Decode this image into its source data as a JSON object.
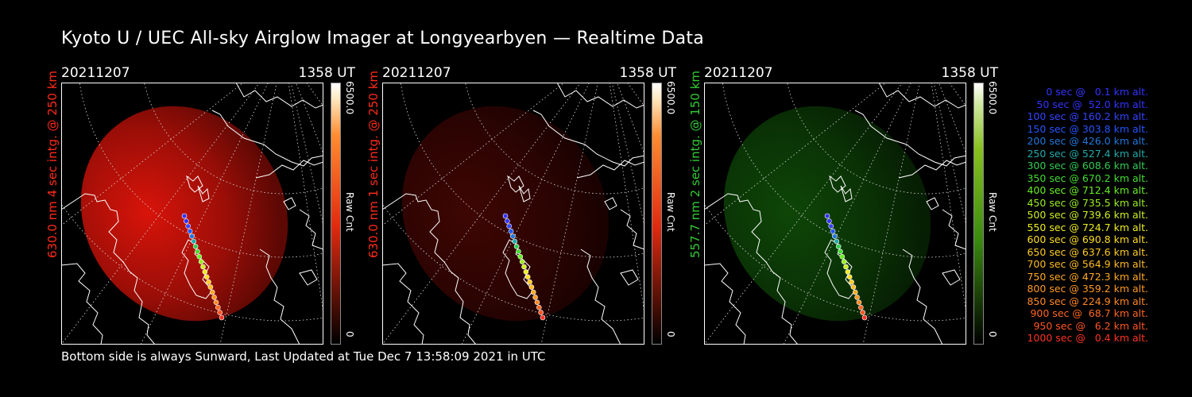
{
  "title": "Kyoto U / UEC All-sky Airglow Imager at Longyearbyen — Realtime Data",
  "footer": "Bottom side is always Sunward, Last Updated at Tue Dec  7 13:58:09 2021 in UTC",
  "panels": [
    {
      "date": "20211207",
      "time": "1358 UT",
      "side_label": "630.0 nm 4 sec intg. @ 250 km",
      "label_color": "#ff2a1a",
      "cbar_max": "6500.0",
      "cbar_unit": "Raw Cnt",
      "cbar_min": "0",
      "colormap": "red",
      "brightness": 0.7
    },
    {
      "date": "20211207",
      "time": "1358 UT",
      "side_label": "630.0 nm 1 sec intg. @ 250 km",
      "label_color": "#ff2a1a",
      "cbar_max": "6500.0",
      "cbar_unit": "Raw Cnt",
      "cbar_min": "0",
      "colormap": "red",
      "brightness": 0.2
    },
    {
      "date": "20211207",
      "time": "1358 UT",
      "side_label": "557.7 nm 2 sec intg. @ 150 km",
      "label_color": "#33cc33",
      "cbar_max": "6500.0",
      "cbar_unit": "Raw Cnt",
      "cbar_min": "0",
      "colormap": "green",
      "brightness": 0.25
    }
  ],
  "legend": [
    {
      "text": "0 sec @   0.1 km alt.",
      "color": "#3333ff"
    },
    {
      "text": "50 sec @  52.0 km alt.",
      "color": "#3333ff"
    },
    {
      "text": "100 sec @ 160.2 km alt.",
      "color": "#3344ff"
    },
    {
      "text": "150 sec @ 303.8 km alt.",
      "color": "#2255ff"
    },
    {
      "text": "200 sec @ 426.0 km alt.",
      "color": "#2277dd"
    },
    {
      "text": "250 sec @ 527.4 km alt.",
      "color": "#22aaaa"
    },
    {
      "text": "300 sec @ 608.6 km alt.",
      "color": "#33cc55"
    },
    {
      "text": "350 sec @ 670.2 km alt.",
      "color": "#44dd33"
    },
    {
      "text": "400 sec @ 712.4 km alt.",
      "color": "#66ee22"
    },
    {
      "text": "450 sec @ 735.5 km alt.",
      "color": "#99ee22"
    },
    {
      "text": "500 sec @ 739.6 km alt.",
      "color": "#ccee22"
    },
    {
      "text": "550 sec @ 724.7 km alt.",
      "color": "#eeee22"
    },
    {
      "text": "600 sec @ 690.8 km alt.",
      "color": "#ffdd22"
    },
    {
      "text": "650 sec @ 637.6 km alt.",
      "color": "#ffcc22"
    },
    {
      "text": "700 sec @ 564.9 km alt.",
      "color": "#ffbb22"
    },
    {
      "text": "750 sec @ 472.3 km alt.",
      "color": "#ffaa22"
    },
    {
      "text": "800 sec @ 359.2 km alt.",
      "color": "#ff9922"
    },
    {
      "text": "850 sec @ 224.9 km alt.",
      "color": "#ff8822"
    },
    {
      "text": "900 sec @  68.7 km alt.",
      "color": "#ff6622"
    },
    {
      "text": "950 sec @   6.2 km alt.",
      "color": "#ff5522"
    },
    {
      "text": "1000 sec @   0.4 km alt.",
      "color": "#ff3322"
    }
  ]
}
